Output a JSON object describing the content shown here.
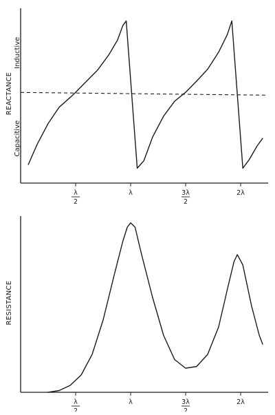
{
  "chart_data": [
    {
      "type": "line",
      "name": "reactance",
      "ylabel": "REACTANCE",
      "region_labels": {
        "upper": "Inductive",
        "lower": "Capacitive"
      },
      "reference_line": {
        "y": 0,
        "style": "dashed"
      },
      "x_unit": "wavelength (λ)",
      "xlim": [
        0,
        2.25
      ],
      "ylim": [
        -1.2,
        1.15
      ],
      "xticks": [
        {
          "value": 0.5,
          "num": "λ",
          "den": "2"
        },
        {
          "value": 1.0,
          "num": "λ",
          "den": ""
        },
        {
          "value": 1.5,
          "num": "3λ",
          "den": "2"
        },
        {
          "value": 2.0,
          "num": "2λ",
          "den": ""
        }
      ],
      "grid": false,
      "series": [
        {
          "points": [
            [
              0.07,
              -0.95
            ],
            [
              0.15,
              -0.68
            ],
            [
              0.25,
              -0.4
            ],
            [
              0.35,
              -0.18
            ],
            [
              0.45,
              -0.05
            ],
            [
              0.5,
              0.02
            ],
            [
              0.6,
              0.17
            ],
            [
              0.7,
              0.32
            ],
            [
              0.8,
              0.52
            ],
            [
              0.88,
              0.72
            ],
            [
              0.93,
              0.92
            ],
            [
              0.96,
              0.98
            ],
            [
              1.06,
              -1.0
            ],
            [
              1.12,
              -0.9
            ],
            [
              1.2,
              -0.58
            ],
            [
              1.3,
              -0.3
            ],
            [
              1.4,
              -0.1
            ],
            [
              1.5,
              0.02
            ],
            [
              1.6,
              0.17
            ],
            [
              1.7,
              0.33
            ],
            [
              1.8,
              0.56
            ],
            [
              1.88,
              0.8
            ],
            [
              1.92,
              0.98
            ],
            [
              2.02,
              -1.0
            ],
            [
              2.08,
              -0.88
            ],
            [
              2.15,
              -0.7
            ],
            [
              2.2,
              -0.6
            ]
          ]
        }
      ]
    },
    {
      "type": "line",
      "name": "resistance",
      "ylabel": "RESISTANCE",
      "x_unit": "wavelength (λ)",
      "xlim": [
        0,
        2.25
      ],
      "ylim": [
        0,
        1.0
      ],
      "xticks": [
        {
          "value": 0.5,
          "num": "λ",
          "den": "2"
        },
        {
          "value": 1.0,
          "num": "λ",
          "den": ""
        },
        {
          "value": 1.5,
          "num": "3λ",
          "den": "2"
        },
        {
          "value": 2.0,
          "num": "2λ",
          "den": ""
        }
      ],
      "grid": false,
      "series": [
        {
          "points": [
            [
              0.25,
              0.0
            ],
            [
              0.35,
              0.01
            ],
            [
              0.45,
              0.04
            ],
            [
              0.55,
              0.1
            ],
            [
              0.65,
              0.22
            ],
            [
              0.75,
              0.42
            ],
            [
              0.85,
              0.68
            ],
            [
              0.93,
              0.88
            ],
            [
              0.97,
              0.96
            ],
            [
              1.0,
              0.985
            ],
            [
              1.04,
              0.96
            ],
            [
              1.1,
              0.8
            ],
            [
              1.2,
              0.55
            ],
            [
              1.3,
              0.33
            ],
            [
              1.4,
              0.19
            ],
            [
              1.5,
              0.14
            ],
            [
              1.6,
              0.15
            ],
            [
              1.7,
              0.22
            ],
            [
              1.8,
              0.38
            ],
            [
              1.88,
              0.6
            ],
            [
              1.94,
              0.76
            ],
            [
              1.97,
              0.8
            ],
            [
              2.02,
              0.74
            ],
            [
              2.1,
              0.5
            ],
            [
              2.17,
              0.33
            ],
            [
              2.2,
              0.28
            ]
          ]
        }
      ]
    }
  ]
}
